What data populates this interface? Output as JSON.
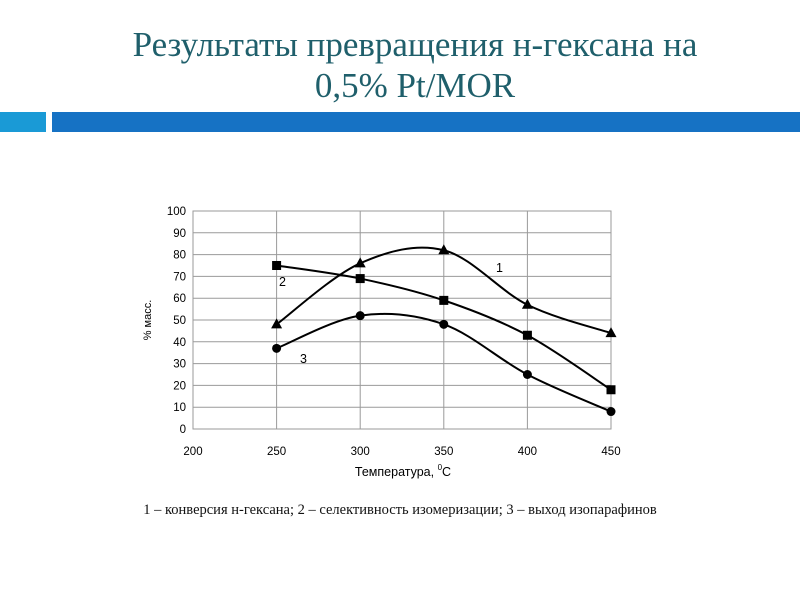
{
  "slide": {
    "title_line1": "Результаты превращения н-гексана на",
    "title_line2": "0,5% Pt/MOR",
    "caption": "1 – конверсия н-гексана; 2 – селективность изомеризации; 3 – выход изопарафинов",
    "title_color": "#1f5f6b",
    "bar_colors": [
      "#1a9ad6",
      "#1672c4"
    ]
  },
  "chart_data": {
    "type": "line",
    "ylabel": "% масс.",
    "xlabel_text": "Температура, ",
    "xlabel_sup": "0",
    "xlabel_unit": "C",
    "xlim": [
      200,
      450
    ],
    "ylim": [
      0,
      100
    ],
    "x_ticks": [
      "200",
      "250",
      "300",
      "350",
      "400",
      "450"
    ],
    "y_ticks": [
      "0",
      "10",
      "20",
      "30",
      "40",
      "50",
      "60",
      "70",
      "80",
      "90",
      "100"
    ],
    "grid": true,
    "series": [
      {
        "name": "1",
        "marker": "triangle",
        "x": [
          250,
          300,
          350,
          400,
          450
        ],
        "y": [
          48,
          76,
          82,
          57,
          44
        ]
      },
      {
        "name": "2",
        "marker": "square",
        "x": [
          250,
          300,
          350,
          400,
          450
        ],
        "y": [
          75,
          69,
          59,
          43,
          18
        ]
      },
      {
        "name": "3",
        "marker": "circle",
        "x": [
          250,
          300,
          350,
          400,
          450
        ],
        "y": [
          37,
          52,
          48,
          25,
          8
        ]
      }
    ]
  }
}
